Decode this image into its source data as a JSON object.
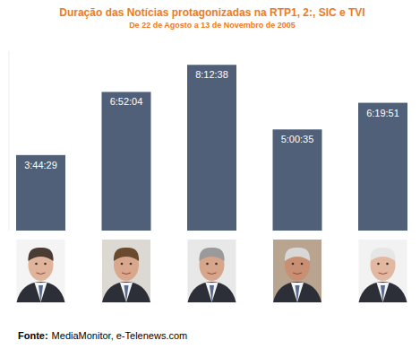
{
  "chart_data": {
    "type": "bar",
    "title": "Duração das Notícias protagonizadas na RTP1, 2:, SIC e TVI",
    "subtitle": "De 22 de Agosto a 13 de Novembro de 2005",
    "source_label": "Fonte:",
    "source": "MediaMonitor, e-Telenews.com",
    "categories": [
      null,
      null,
      null,
      null,
      null
    ],
    "values": [
      13469,
      24724,
      29558,
      18035,
      22791
    ],
    "value_labels": [
      "3:44:29",
      "6:52:04",
      "8:12:38",
      "5:00:35",
      "6:19:51"
    ],
    "color": "#506079",
    "ylim": [
      0,
      32000
    ],
    "tick_labels": false,
    "data_labels": true,
    "grid": false
  }
}
